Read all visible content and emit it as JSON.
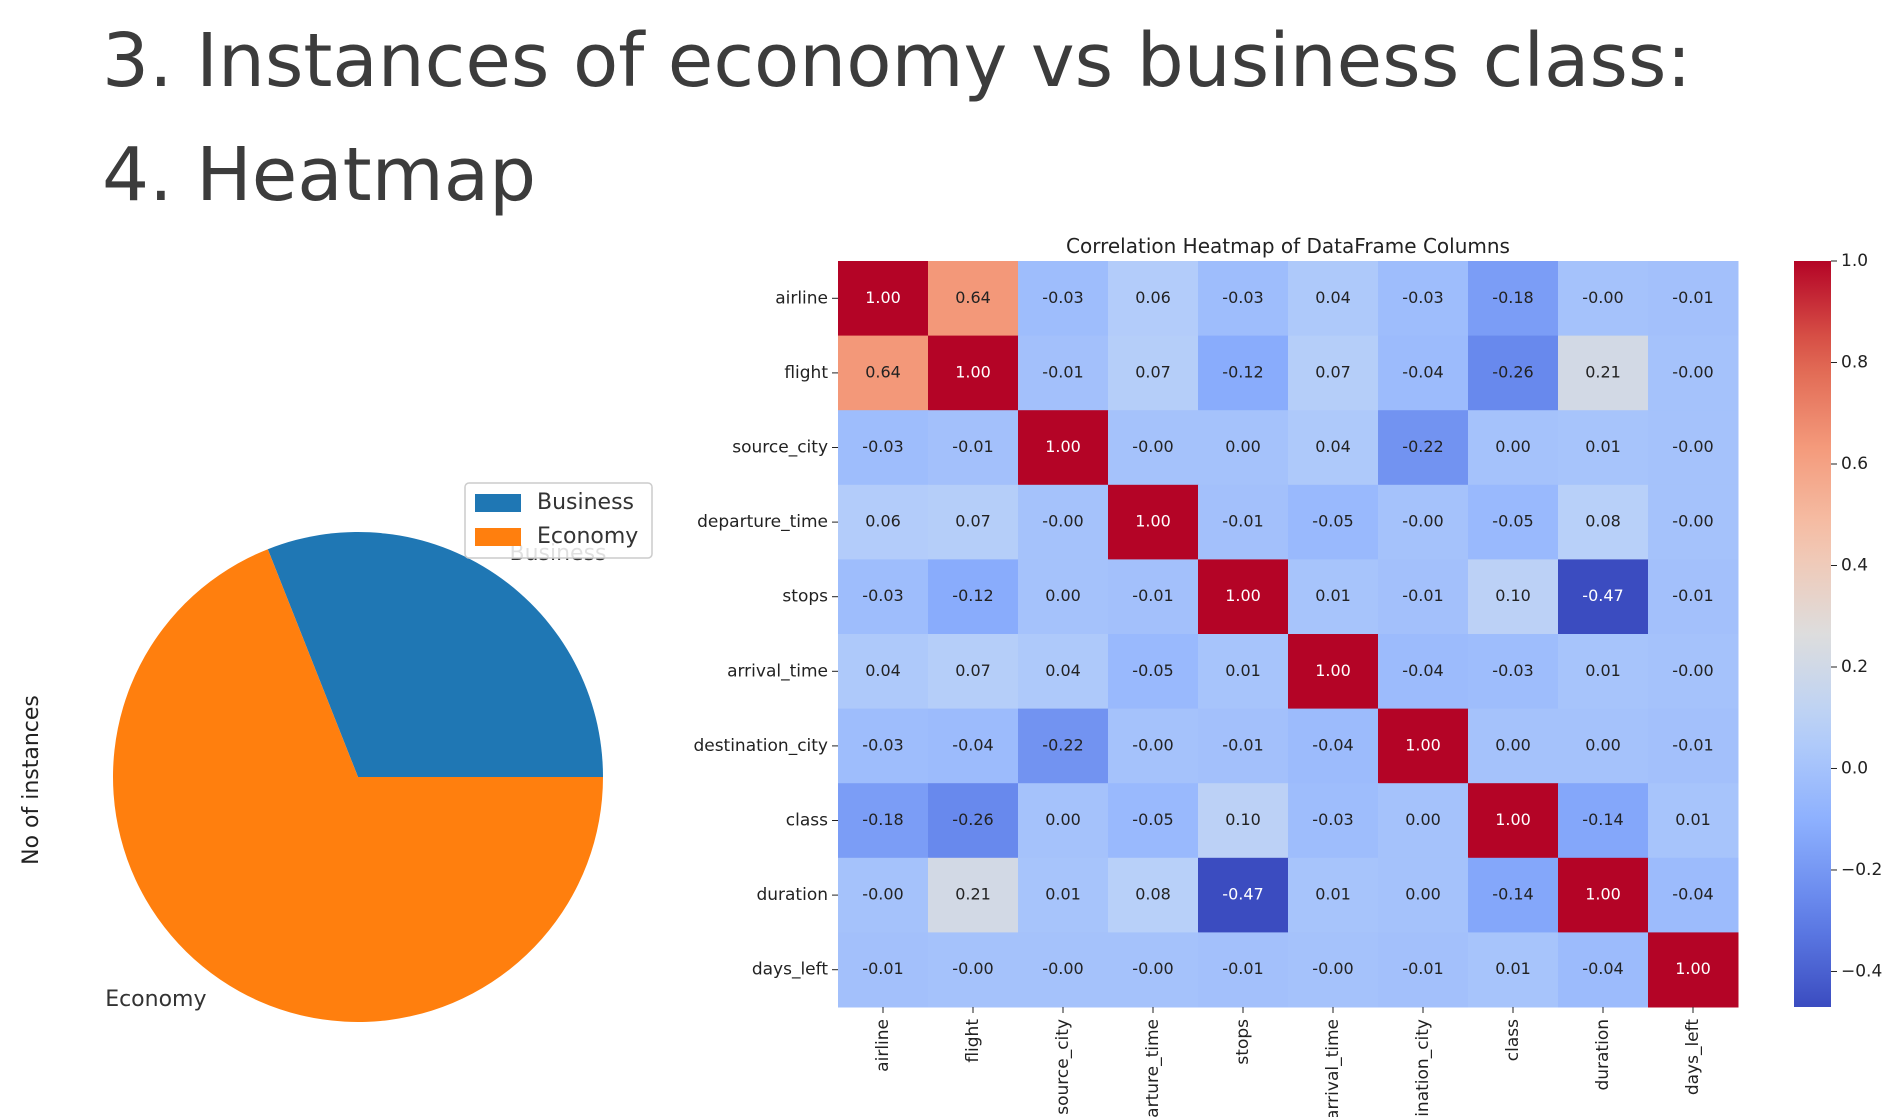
{
  "slide": {
    "heading_1": "3. Instances of economy vs business class:",
    "heading_2": "4. Heatmap"
  },
  "chart_data": [
    {
      "type": "pie",
      "ylabel": "No of instances",
      "categories": [
        "Business",
        "Economy"
      ],
      "values": [
        31,
        69
      ],
      "colors": [
        "#1f77b4",
        "#ff7f0e"
      ],
      "legend": {
        "entries": [
          "Business",
          "Economy"
        ],
        "placement": "top-right"
      }
    },
    {
      "type": "heatmap",
      "title": "Correlation Heatmap of DataFrame Columns",
      "colormap": "coolwarm",
      "rows": [
        "airline",
        "flight",
        "source_city",
        "departure_time",
        "stops",
        "arrival_time",
        "destination_city",
        "class",
        "duration",
        "days_left"
      ],
      "columns": [
        "airline",
        "flight",
        "source_city",
        "departure_time",
        "stops",
        "arrival_time",
        "destination_city",
        "class",
        "duration",
        "days_left"
      ],
      "values": [
        [
          1.0,
          0.64,
          -0.03,
          0.06,
          -0.03,
          0.04,
          -0.03,
          -0.18,
          -0.0,
          -0.01
        ],
        [
          0.64,
          1.0,
          -0.01,
          0.07,
          -0.12,
          0.07,
          -0.04,
          -0.26,
          0.21,
          -0.0
        ],
        [
          -0.03,
          -0.01,
          1.0,
          -0.0,
          0.0,
          0.04,
          -0.22,
          0.0,
          0.01,
          -0.0
        ],
        [
          0.06,
          0.07,
          -0.0,
          1.0,
          -0.01,
          -0.05,
          -0.0,
          -0.05,
          0.08,
          -0.0
        ],
        [
          -0.03,
          -0.12,
          0.0,
          -0.01,
          1.0,
          0.01,
          -0.01,
          0.1,
          -0.47,
          -0.01
        ],
        [
          0.04,
          0.07,
          0.04,
          -0.05,
          0.01,
          1.0,
          -0.04,
          -0.03,
          0.01,
          -0.0
        ],
        [
          -0.03,
          -0.04,
          -0.22,
          -0.0,
          -0.01,
          -0.04,
          1.0,
          0.0,
          0.0,
          -0.01
        ],
        [
          -0.18,
          -0.26,
          0.0,
          -0.05,
          0.1,
          -0.03,
          0.0,
          1.0,
          -0.14,
          0.01
        ],
        [
          -0.0,
          0.21,
          0.01,
          0.08,
          -0.47,
          0.01,
          0.0,
          -0.14,
          1.0,
          -0.04
        ],
        [
          -0.01,
          -0.0,
          -0.0,
          -0.0,
          -0.01,
          -0.0,
          -0.01,
          0.01,
          -0.04,
          1.0
        ]
      ],
      "colorbar": {
        "range": [
          -0.47,
          1.0
        ],
        "ticks": [
          1.0,
          0.8,
          0.6,
          0.4,
          0.2,
          0.0,
          -0.2,
          -0.4
        ],
        "tick_labels": [
          "1.0",
          "0.8",
          "0.6",
          "0.4",
          "0.2",
          "0.0",
          "−0.2",
          "−0.4"
        ]
      }
    }
  ]
}
